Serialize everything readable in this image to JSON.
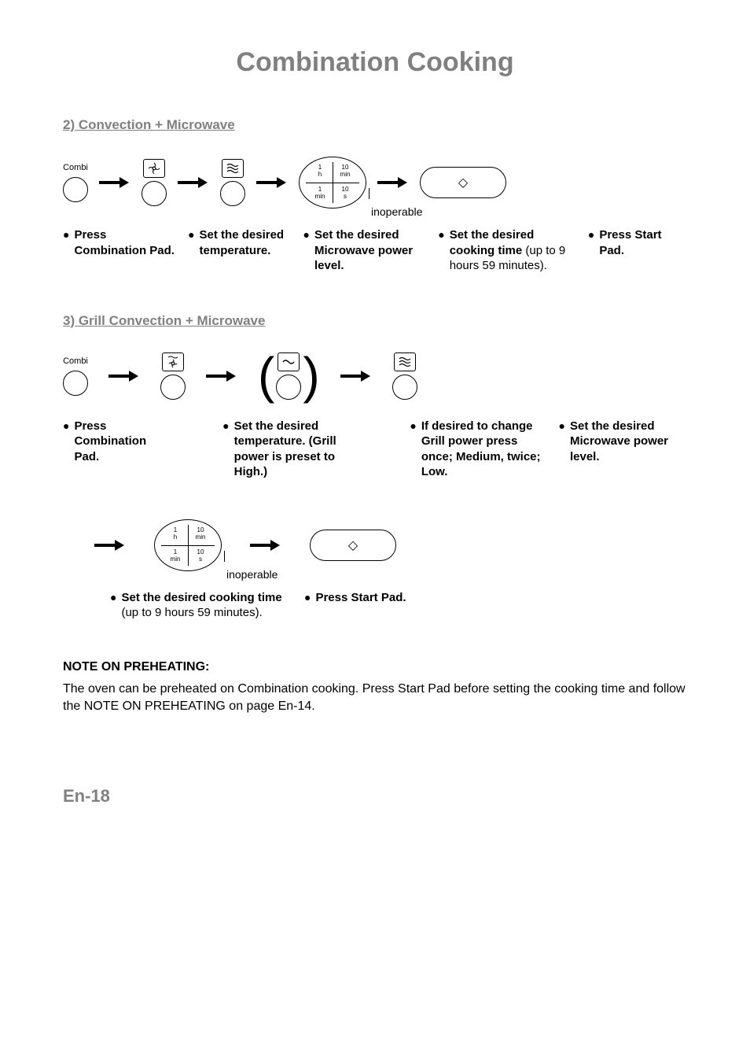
{
  "page": {
    "title": "Combination Cooking",
    "number": "En-18"
  },
  "colors": {
    "gray_heading": "#808080",
    "text": "#000000",
    "bg": "#ffffff"
  },
  "typography": {
    "title_fontsize_pt": 26,
    "heading_fontsize_pt": 13,
    "body_fontsize_pt": 12
  },
  "section2": {
    "heading": "2) Convection + Microwave",
    "combi_label": "Combi",
    "icons": {
      "convection": "fan-icon",
      "microwave": "wave-icon"
    },
    "dial": {
      "cells": [
        "1\nh",
        "10\nmin",
        "1\nmin",
        "10\ns"
      ],
      "inoperable_label": "inoperable"
    },
    "start_glyph": "◇",
    "steps": [
      {
        "bold": "Press Combination Pad.",
        "plain": ""
      },
      {
        "bold": "Set the desired temperature.",
        "plain": ""
      },
      {
        "bold": "Set the desired Microwave power level.",
        "plain": ""
      },
      {
        "bold": "Set the desired cooking time",
        "plain": " (up to 9 hours 59 minutes)."
      },
      {
        "bold": "Press Start Pad.",
        "plain": ""
      }
    ]
  },
  "section3": {
    "heading": "3) Grill Convection + Microwave",
    "combi_label": "Combi",
    "icons": {
      "grill_conv": "grill-fan-icon",
      "grill": "grill-wave-icon",
      "microwave": "wave-icon"
    },
    "dial": {
      "cells": [
        "1\nh",
        "10\nmin",
        "1\nmin",
        "10\ns"
      ],
      "inoperable_label": "inoperable"
    },
    "start_glyph": "◇",
    "steps_row1": [
      {
        "bold": "Press Combination Pad.",
        "plain": ""
      },
      {
        "bold": "Set the desired temperature. (Grill power is preset to High.)",
        "plain": ""
      },
      {
        "bold": "If desired to change Grill power press once; Medium, twice; Low.",
        "plain": ""
      },
      {
        "bold": "Set the desired Microwave power level.",
        "plain": ""
      }
    ],
    "steps_row2": [
      {
        "bold": "Set the desired cooking time",
        "plain": " (up to 9 hours 59 minutes)."
      },
      {
        "bold": "Press Start Pad.",
        "plain": ""
      }
    ]
  },
  "note": {
    "heading": "NOTE ON PREHEATING:",
    "body": "The oven can be preheated on Combination cooking. Press Start Pad before setting the cooking time and follow the NOTE ON PREHEATING on page En-14."
  }
}
